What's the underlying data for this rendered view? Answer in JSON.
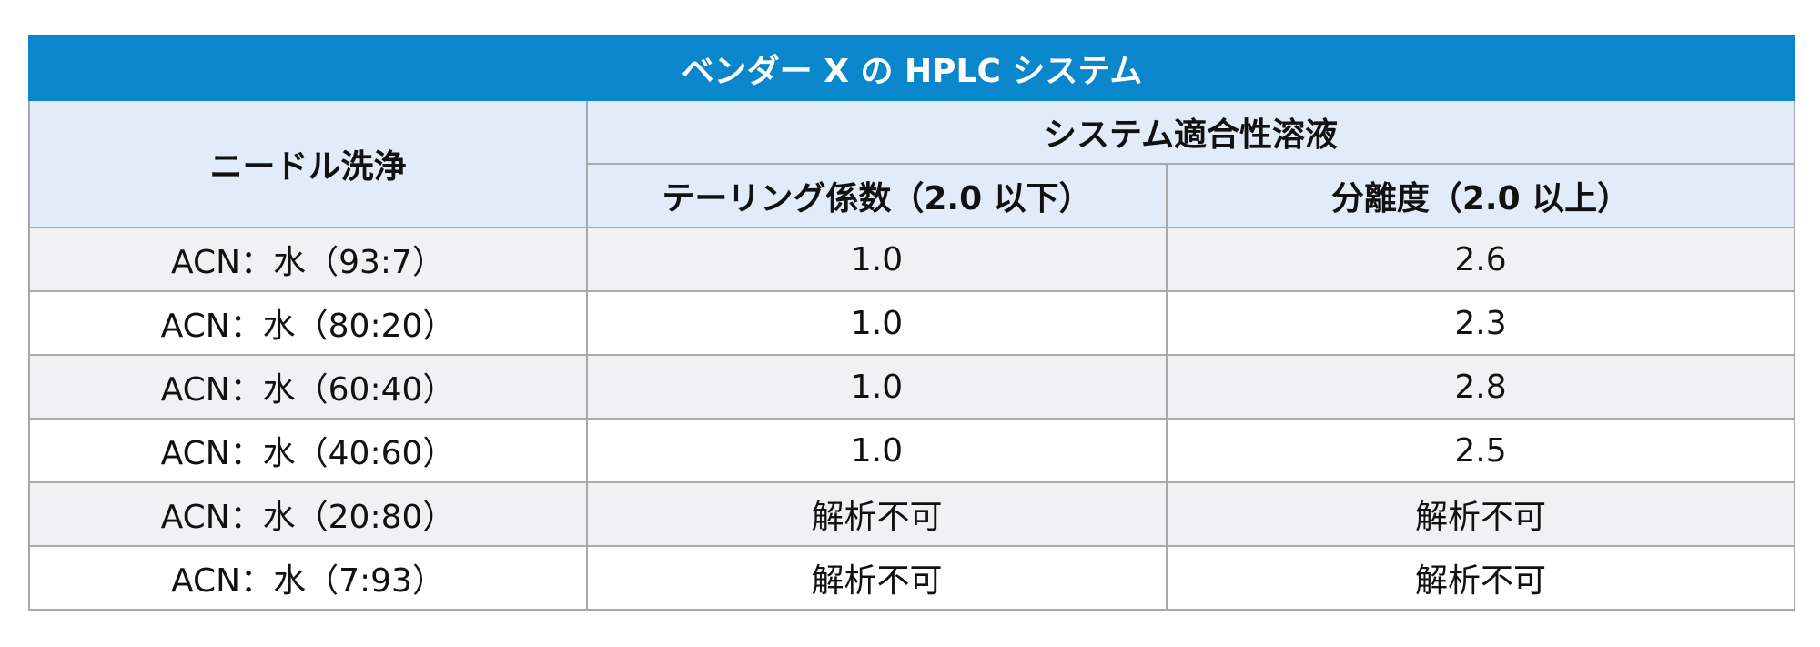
{
  "table": {
    "title": "ベンダー X の HPLC システム",
    "header": {
      "needle_wash": "ニードル洗浄",
      "system_suitability": "システム適合性溶液",
      "tailing": "テーリング係数（2.0 以下）",
      "resolution": "分離度（2.0 以上）"
    },
    "rows": [
      {
        "wash": "ACN：水（93:7）",
        "tailing": "1.0",
        "resolution": "2.6"
      },
      {
        "wash": "ACN：水（80:20）",
        "tailing": "1.0",
        "resolution": "2.3"
      },
      {
        "wash": "ACN：水（60:40）",
        "tailing": "1.0",
        "resolution": "2.8"
      },
      {
        "wash": "ACN：水（40:60）",
        "tailing": "1.0",
        "resolution": "2.5"
      },
      {
        "wash": "ACN：水（20:80）",
        "tailing": "解析不可",
        "resolution": "解析不可"
      },
      {
        "wash": "ACN：水（7:93）",
        "tailing": "解析不可",
        "resolution": "解析不可"
      }
    ]
  },
  "colors": {
    "title_bg": "#0a86cc",
    "header_bg": "#e1ecf8",
    "row_alt_bg": "#f1f1f3",
    "border": "#a9a9a9"
  }
}
